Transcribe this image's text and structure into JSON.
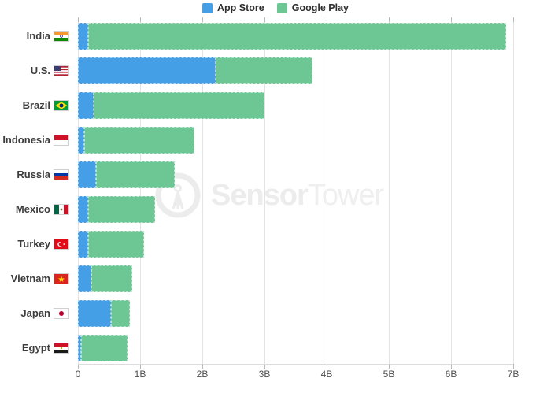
{
  "legend": [
    {
      "label": "App Store",
      "color": "#459fe7"
    },
    {
      "label": "Google Play",
      "color": "#6cc795"
    }
  ],
  "watermark": {
    "bold": "Sensor",
    "light": "Tower"
  },
  "chart_data": {
    "type": "bar",
    "orientation": "horizontal",
    "stacked": true,
    "title": "",
    "xlabel": "",
    "ylabel": "",
    "unit": "billions of app downloads",
    "xlim": [
      0,
      7
    ],
    "grid": true,
    "legend_position": "top",
    "x_ticks": [
      "0",
      "1B",
      "2B",
      "3B",
      "4B",
      "5B",
      "6B",
      "7B"
    ],
    "categories": [
      "India",
      "U.S.",
      "Brazil",
      "Indonesia",
      "Russia",
      "Mexico",
      "Turkey",
      "Vietnam",
      "Japan",
      "Egypt"
    ],
    "flags": [
      "flag-india",
      "flag-us",
      "flag-brazil",
      "flag-indonesia",
      "flag-russia",
      "flag-mexico",
      "flag-turkey",
      "flag-vietnam",
      "flag-japan",
      "flag-egypt"
    ],
    "series": [
      {
        "name": "App Store",
        "color": "#459fe7",
        "values": [
          0.17,
          2.22,
          0.25,
          0.1,
          0.29,
          0.17,
          0.16,
          0.22,
          0.53,
          0.05
        ]
      },
      {
        "name": "Google Play",
        "color": "#6cc795",
        "values": [
          6.72,
          1.55,
          2.75,
          1.77,
          1.27,
          1.07,
          0.9,
          0.65,
          0.31,
          0.75
        ]
      }
    ]
  }
}
